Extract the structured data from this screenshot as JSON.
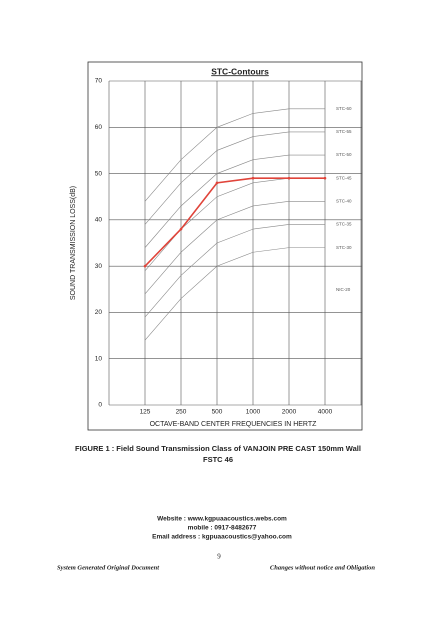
{
  "chart_data": {
    "type": "line",
    "title": "STC-Contours",
    "y_label": "SOUND TRANSMISSION LOSS(dB)",
    "x_label": "OCTAVE-BAND CENTER FREQUENCIES IN HERTZ",
    "categories": [
      "125",
      "250",
      "500",
      "1000",
      "2000",
      "4000"
    ],
    "values": [
      30,
      38,
      48,
      49,
      49,
      49
    ],
    "color": "#e0443a",
    "contours": [
      {
        "name": "STC-60",
        "color": "#888888",
        "values": [
          44,
          53,
          60,
          63,
          64,
          64
        ]
      },
      {
        "name": "STC-55",
        "color": "#888888",
        "values": [
          39,
          48,
          55,
          58,
          59,
          59
        ]
      },
      {
        "name": "STC-50",
        "color": "#888888",
        "values": [
          34,
          43,
          50,
          53,
          54,
          54
        ]
      },
      {
        "name": "STC-45",
        "color": "#888888",
        "values": [
          29,
          38,
          45,
          48,
          49,
          49
        ]
      },
      {
        "name": "STC-40",
        "color": "#888888",
        "values": [
          24,
          33,
          40,
          43,
          44,
          44
        ]
      },
      {
        "name": "STC-35",
        "color": "#888888",
        "values": [
          19,
          28,
          35,
          38,
          39,
          39
        ]
      },
      {
        "name": "STC-30",
        "color": "#888888",
        "values": [
          14,
          23,
          30,
          33,
          34,
          34
        ]
      }
    ],
    "annotation": "NIC-20",
    "ylim": [
      0,
      70
    ],
    "yticks": [
      0,
      10,
      20,
      30,
      40,
      50,
      60,
      70
    ],
    "grid": true
  },
  "caption": {
    "line1": "FIGURE 1 : Field Sound Transmission Class of VANJOIN PRE CAST 150mm Wall",
    "line2": "FSTC 46"
  },
  "contact": {
    "website": "Website : www.kgpuaacoustics.webs.com",
    "mobile": "mobile : 0917-8482677",
    "email": "Email address : kgpuaacoustics@yahoo.com"
  },
  "footer": {
    "page": "9",
    "left": "System Generated Original Document",
    "right": "Changes without notice and Obligation"
  }
}
